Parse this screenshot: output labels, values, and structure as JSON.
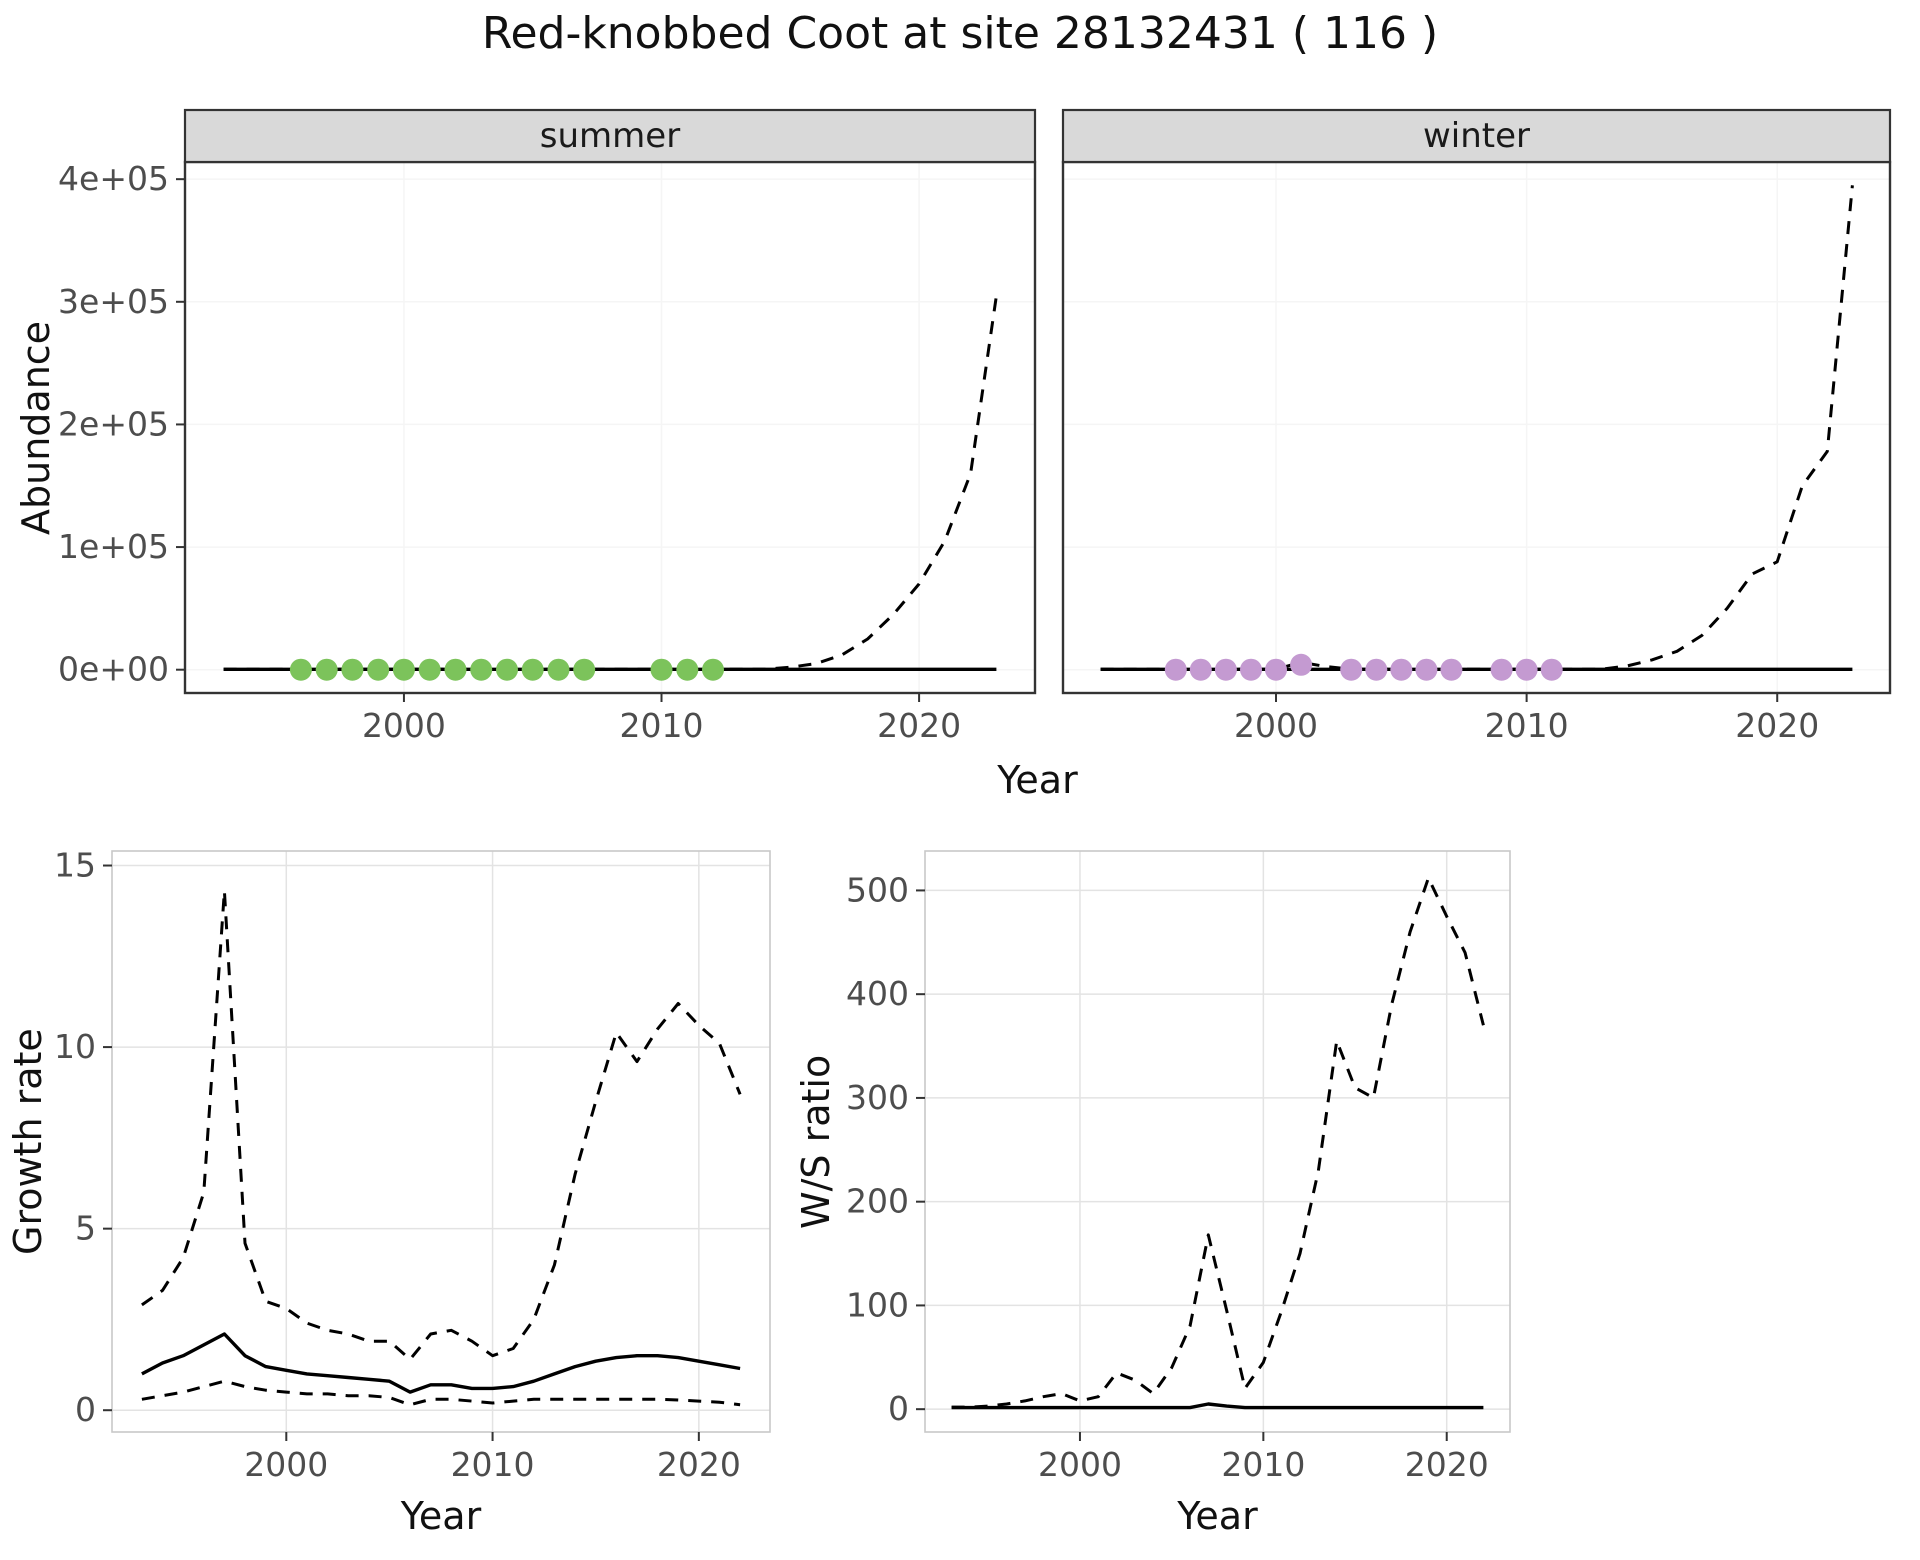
{
  "title": "Red-knobbed Coot at site 28132431 ( 116 )",
  "colors": {
    "summer_points": "#7CC35B",
    "winter_points": "#C49AD1",
    "line": "#000000",
    "strip_background": "#D9D9D9"
  },
  "chart_data": [
    {
      "id": "summer",
      "type": "line",
      "facet": "summer",
      "xlabel": "Year",
      "ylabel": "Abundance",
      "xlim": [
        1991.5,
        2024.5
      ],
      "ylim": [
        -19000,
        414000
      ],
      "xticks": {
        "values": [
          2000,
          2010,
          2020
        ],
        "labels": [
          "2000",
          "2010",
          "2020"
        ]
      },
      "yticks": {
        "values": [
          0,
          100000,
          200000,
          300000,
          400000
        ],
        "labels": [
          "0e+00",
          "1e+05",
          "2e+05",
          "3e+05",
          "4e+05"
        ]
      },
      "series": [
        {
          "name": "estimate",
          "style": "solid",
          "x": [
            1993,
            1994,
            1995,
            1996,
            1997,
            1998,
            1999,
            2000,
            2001,
            2002,
            2003,
            2004,
            2005,
            2006,
            2007,
            2008,
            2009,
            2010,
            2011,
            2012,
            2013,
            2014,
            2015,
            2016,
            2017,
            2018,
            2019,
            2020,
            2021,
            2022,
            2023
          ],
          "y": [
            300,
            300,
            300,
            300,
            300,
            300,
            300,
            300,
            300,
            300,
            300,
            300,
            300,
            300,
            300,
            300,
            300,
            300,
            300,
            300,
            300,
            300,
            300,
            300,
            300,
            300,
            300,
            300,
            300,
            300,
            300
          ]
        },
        {
          "name": "upper_ci",
          "style": "dashed",
          "x": [
            1993,
            1994,
            1995,
            1996,
            1997,
            1998,
            1999,
            2000,
            2001,
            2002,
            2003,
            2004,
            2005,
            2006,
            2007,
            2008,
            2009,
            2010,
            2011,
            2012,
            2013,
            2014,
            2015,
            2016,
            2017,
            2018,
            2019,
            2020,
            2021,
            2022,
            2023
          ],
          "y": [
            300,
            300,
            300,
            300,
            300,
            300,
            300,
            300,
            300,
            300,
            300,
            300,
            300,
            300,
            300,
            300,
            300,
            300,
            300,
            300,
            300,
            300,
            2000,
            5000,
            12000,
            25000,
            45000,
            70000,
            105000,
            160000,
            305000
          ]
        },
        {
          "name": "observed_counts",
          "style": "points",
          "color": "#7CC35B",
          "x": [
            1996,
            1997,
            1998,
            1999,
            2000,
            2001,
            2002,
            2003,
            2004,
            2005,
            2006,
            2007,
            2010,
            2011,
            2012
          ],
          "y": [
            0,
            0,
            0,
            0,
            0,
            0,
            0,
            0,
            0,
            0,
            0,
            0,
            0,
            0,
            0
          ]
        }
      ]
    },
    {
      "id": "winter",
      "type": "line",
      "facet": "winter",
      "xlabel": "Year",
      "ylabel": "Abundance",
      "xlim": [
        1991.5,
        2024.5
      ],
      "ylim": [
        -19000,
        414000
      ],
      "xticks": {
        "values": [
          2000,
          2010,
          2020
        ],
        "labels": [
          "2000",
          "2010",
          "2020"
        ]
      },
      "yticks": {
        "values": [
          0,
          100000,
          200000,
          300000,
          400000
        ],
        "labels": [
          "0e+00",
          "1e+05",
          "2e+05",
          "3e+05",
          "4e+05"
        ]
      },
      "series": [
        {
          "name": "estimate",
          "style": "solid",
          "x": [
            1993,
            1994,
            1995,
            1996,
            1997,
            1998,
            1999,
            2000,
            2001,
            2002,
            2003,
            2004,
            2005,
            2006,
            2007,
            2008,
            2009,
            2010,
            2011,
            2012,
            2013,
            2014,
            2015,
            2016,
            2017,
            2018,
            2019,
            2020,
            2021,
            2022,
            2023
          ],
          "y": [
            300,
            300,
            300,
            300,
            300,
            300,
            300,
            300,
            300,
            300,
            300,
            300,
            300,
            300,
            300,
            300,
            300,
            300,
            300,
            300,
            300,
            300,
            300,
            300,
            300,
            300,
            300,
            300,
            300,
            300,
            300
          ]
        },
        {
          "name": "upper_ci",
          "style": "dashed",
          "x": [
            1993,
            1994,
            1995,
            1996,
            1997,
            1998,
            1999,
            2000,
            2001,
            2002,
            2003,
            2004,
            2005,
            2006,
            2007,
            2008,
            2009,
            2010,
            2011,
            2012,
            2013,
            2014,
            2015,
            2016,
            2017,
            2018,
            2019,
            2020,
            2021,
            2022,
            2023
          ],
          "y": [
            300,
            300,
            300,
            300,
            300,
            300,
            300,
            300,
            6000,
            2500,
            400,
            400,
            400,
            400,
            400,
            400,
            400,
            400,
            400,
            400,
            400,
            3000,
            8000,
            15000,
            28000,
            50000,
            78000,
            88000,
            150000,
            178000,
            395000
          ]
        },
        {
          "name": "observed_counts",
          "style": "points",
          "color": "#C49AD1",
          "x": [
            1996,
            1997,
            1998,
            1999,
            2000,
            2001,
            2003,
            2004,
            2005,
            2006,
            2007,
            2009,
            2010,
            2011
          ],
          "y": [
            0,
            0,
            0,
            0,
            0,
            4000,
            0,
            0,
            0,
            0,
            0,
            0,
            0,
            0
          ]
        }
      ]
    },
    {
      "id": "growth",
      "type": "line",
      "xlabel": "Year",
      "ylabel": "Growth rate",
      "xlim": [
        1991.55,
        2023.45
      ],
      "ylim": [
        -0.6,
        15.4
      ],
      "xticks": {
        "values": [
          2000,
          2010,
          2020
        ],
        "labels": [
          "2000",
          "2010",
          "2020"
        ]
      },
      "yticks": {
        "values": [
          0,
          5,
          10,
          15
        ],
        "labels": [
          "0",
          "5",
          "10",
          "15"
        ]
      },
      "series": [
        {
          "name": "growth_rate_estimate",
          "style": "solid",
          "x": [
            1993,
            1994,
            1995,
            1996,
            1997,
            1998,
            1999,
            2000,
            2001,
            2002,
            2003,
            2004,
            2005,
            2006,
            2007,
            2008,
            2009,
            2010,
            2011,
            2012,
            2013,
            2014,
            2015,
            2016,
            2017,
            2018,
            2019,
            2020,
            2021,
            2022
          ],
          "y": [
            1.0,
            1.3,
            1.5,
            1.8,
            2.1,
            1.5,
            1.2,
            1.1,
            1.0,
            0.95,
            0.9,
            0.85,
            0.8,
            0.5,
            0.7,
            0.7,
            0.6,
            0.6,
            0.65,
            0.8,
            1.0,
            1.2,
            1.35,
            1.45,
            1.5,
            1.5,
            1.45,
            1.35,
            1.25,
            1.15
          ]
        },
        {
          "name": "upper_ci",
          "style": "dashed",
          "x": [
            1993,
            1994,
            1995,
            1996,
            1997,
            1998,
            1999,
            2000,
            2001,
            2002,
            2003,
            2004,
            2005,
            2006,
            2007,
            2008,
            2009,
            2010,
            2011,
            2012,
            2013,
            2014,
            2015,
            2016,
            2017,
            2018,
            2019,
            2020,
            2021,
            2022
          ],
          "y": [
            2.9,
            3.3,
            4.2,
            6.0,
            14.3,
            4.6,
            3.0,
            2.8,
            2.4,
            2.2,
            2.1,
            1.9,
            1.9,
            1.4,
            2.1,
            2.2,
            1.9,
            1.5,
            1.7,
            2.5,
            4.0,
            6.5,
            8.5,
            10.4,
            9.6,
            10.5,
            11.2,
            10.6,
            10.1,
            8.7
          ]
        },
        {
          "name": "lower_ci",
          "style": "dashed",
          "x": [
            1993,
            1994,
            1995,
            1996,
            1997,
            1998,
            1999,
            2000,
            2001,
            2002,
            2003,
            2004,
            2005,
            2006,
            2007,
            2008,
            2009,
            2010,
            2011,
            2012,
            2013,
            2014,
            2015,
            2016,
            2017,
            2018,
            2019,
            2020,
            2021,
            2022
          ],
          "y": [
            0.3,
            0.4,
            0.5,
            0.65,
            0.8,
            0.65,
            0.55,
            0.5,
            0.45,
            0.45,
            0.4,
            0.4,
            0.35,
            0.15,
            0.3,
            0.3,
            0.25,
            0.2,
            0.25,
            0.3,
            0.3,
            0.3,
            0.3,
            0.3,
            0.3,
            0.3,
            0.28,
            0.25,
            0.22,
            0.15
          ]
        }
      ]
    },
    {
      "id": "ws",
      "type": "line",
      "xlabel": "Year",
      "ylabel": "W/S ratio",
      "xlim": [
        1991.55,
        2023.45
      ],
      "ylim": [
        -22,
        538
      ],
      "xticks": {
        "values": [
          2000,
          2010,
          2020
        ],
        "labels": [
          "2000",
          "2010",
          "2020"
        ]
      },
      "yticks": {
        "values": [
          0,
          100,
          200,
          300,
          400,
          500
        ],
        "labels": [
          "0",
          "100",
          "200",
          "300",
          "400",
          "500"
        ]
      },
      "series": [
        {
          "name": "ws_ratio_estimate",
          "style": "solid",
          "x": [
            1993,
            1994,
            1995,
            1996,
            1997,
            1998,
            1999,
            2000,
            2001,
            2002,
            2003,
            2004,
            2005,
            2006,
            2007,
            2008,
            2009,
            2010,
            2011,
            2012,
            2013,
            2014,
            2015,
            2016,
            2017,
            2018,
            2019,
            2020,
            2021,
            2022
          ],
          "y": [
            1.5,
            1.5,
            1.5,
            1.5,
            1.5,
            1.5,
            1.5,
            1.5,
            1.5,
            1.5,
            1.5,
            1.5,
            1.5,
            1.5,
            5,
            3,
            1.5,
            1.5,
            1.5,
            1.5,
            1.5,
            1.5,
            1.5,
            1.5,
            1.5,
            1.5,
            1.5,
            1.5,
            1.5,
            1.5
          ]
        },
        {
          "name": "upper_ci",
          "style": "dashed",
          "x": [
            1993,
            1994,
            1995,
            1996,
            1997,
            1998,
            1999,
            2000,
            2001,
            2002,
            2003,
            2004,
            2005,
            2006,
            2007,
            2008,
            2009,
            2010,
            2011,
            2012,
            2013,
            2014,
            2015,
            2016,
            2017,
            2018,
            2019,
            2020,
            2021,
            2022
          ],
          "y": [
            2,
            2,
            3,
            5,
            8,
            12,
            15,
            8,
            12,
            35,
            28,
            15,
            40,
            80,
            168,
            95,
            20,
            45,
            95,
            150,
            230,
            355,
            310,
            300,
            390,
            460,
            512,
            475,
            440,
            370
          ]
        }
      ]
    }
  ]
}
